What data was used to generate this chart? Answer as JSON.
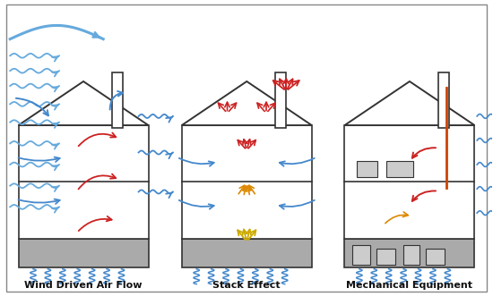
{
  "title": "",
  "labels": [
    "Wind Driven Air Flow",
    "Stack Effect",
    "Mechanical Equipment"
  ],
  "label_fontsize": 8,
  "label_fontweight": "bold",
  "bg_color": "#ffffff",
  "wall_color": "#333333",
  "roof_color": "#333333",
  "blue_arrow": "#4488cc",
  "red_arrow": "#cc2222",
  "orange_arrow": "#dd8800",
  "yellow_arrow": "#ccaa00",
  "wind_blue": "#66aadd",
  "figsize": [
    5.5,
    3.41
  ],
  "dpi": 100
}
